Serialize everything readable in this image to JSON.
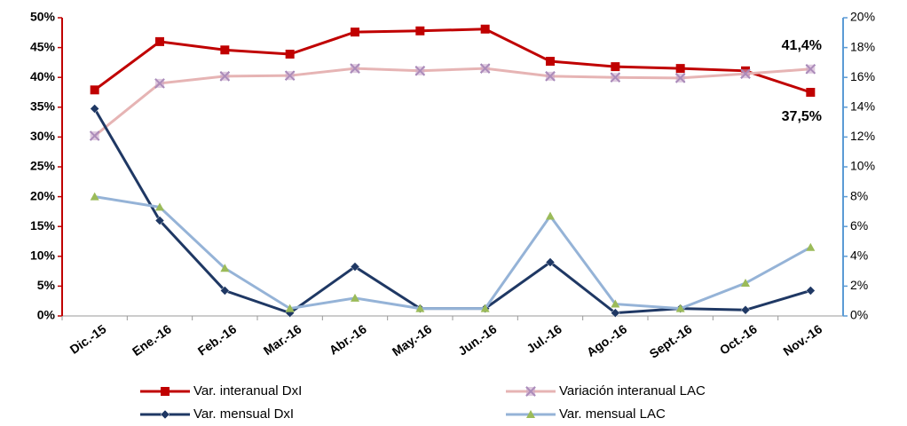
{
  "chart_data": {
    "type": "line",
    "categories": [
      "Dic.-15",
      "Ene.-16",
      "Feb.-16",
      "Mar.-16",
      "Abr.-16",
      "May.-16",
      "Jun.-16",
      "Jul.-16",
      "Ago.-16",
      "Sept.-16",
      "Oct.-16",
      "Nov.-16"
    ],
    "ylim": [
      0,
      50
    ],
    "yticks": [
      {
        "value": 0,
        "label": "0%"
      },
      {
        "value": 5,
        "label": "5%"
      },
      {
        "value": 10,
        "label": "10%"
      },
      {
        "value": 15,
        "label": "15%"
      },
      {
        "value": 20,
        "label": "20%"
      },
      {
        "value": 25,
        "label": "25%"
      },
      {
        "value": 30,
        "label": "30%"
      },
      {
        "value": 35,
        "label": "35%"
      },
      {
        "value": 40,
        "label": "40%"
      },
      {
        "value": 45,
        "label": "45%"
      },
      {
        "value": 50,
        "label": "50%"
      }
    ],
    "y2lim": [
      0,
      20
    ],
    "y2ticks": [
      {
        "value": 0,
        "label": "0%"
      },
      {
        "value": 2,
        "label": "2%"
      },
      {
        "value": 4,
        "label": "4%"
      },
      {
        "value": 6,
        "label": "6%"
      },
      {
        "value": 8,
        "label": "8%"
      },
      {
        "value": 10,
        "label": "10%"
      },
      {
        "value": 12,
        "label": "12%"
      },
      {
        "value": 14,
        "label": "14%"
      },
      {
        "value": 16,
        "label": "16%"
      },
      {
        "value": 18,
        "label": "18%"
      },
      {
        "value": 20,
        "label": "20%"
      }
    ],
    "series": [
      {
        "name": "Var. interanual DxI",
        "color": "#c00000",
        "marker": "square",
        "axis": "y",
        "values": [
          37.9,
          46.0,
          44.6,
          43.9,
          47.6,
          47.8,
          48.1,
          42.7,
          41.8,
          41.5,
          41.1,
          37.5
        ],
        "value_labels": [
          null,
          null,
          null,
          null,
          null,
          null,
          null,
          null,
          null,
          null,
          null,
          "37,5%"
        ]
      },
      {
        "name": "Variación interanual LAC",
        "color": "#e6b4b4",
        "marker": "x",
        "axis": "y",
        "values": [
          30.2,
          39.0,
          40.2,
          40.3,
          41.5,
          41.1,
          41.5,
          40.2,
          40.0,
          39.9,
          40.6,
          41.4
        ],
        "value_labels": [
          null,
          null,
          null,
          null,
          null,
          null,
          null,
          null,
          null,
          null,
          null,
          "41,4%"
        ]
      },
      {
        "name": "Var. mensual DxI",
        "color": "#1f3864",
        "marker": "diamond",
        "axis": "y2",
        "values": [
          13.9,
          6.4,
          1.7,
          0.2,
          3.3,
          0.5,
          0.5,
          3.6,
          0.2,
          0.5,
          0.4,
          1.7
        ]
      },
      {
        "name": "Var. mensual LAC",
        "color": "#95b3d7",
        "marker": "triangle",
        "axis": "y2",
        "values": [
          8.0,
          7.3,
          3.2,
          0.5,
          1.2,
          0.5,
          0.5,
          6.7,
          0.8,
          0.5,
          2.2,
          4.6
        ]
      }
    ]
  }
}
